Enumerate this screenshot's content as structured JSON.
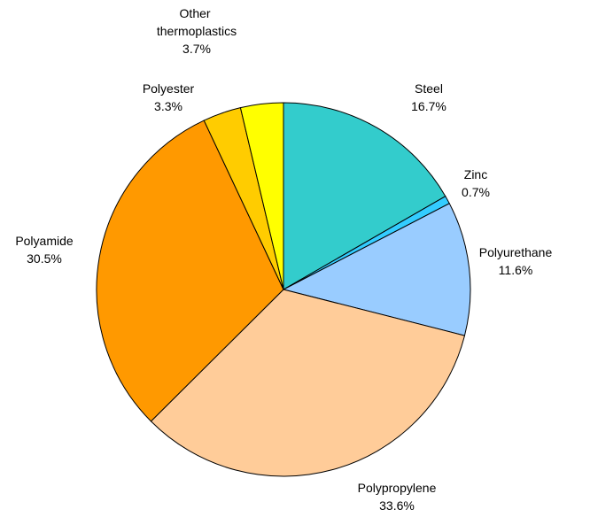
{
  "chart_data": {
    "type": "pie",
    "categories": [
      "Steel",
      "Zinc",
      "Polyurethane",
      "Polypropylene",
      "Polyamide",
      "Polyester",
      "Other thermoplastics"
    ],
    "values": [
      16.7,
      0.7,
      11.6,
      33.6,
      30.5,
      3.3,
      3.7
    ],
    "value_labels": [
      "16.7%",
      "0.7%",
      "11.6%",
      "33.6%",
      "30.5%",
      "3.3%",
      "3.7%"
    ],
    "colors": [
      "#33cccc",
      "#33ccff",
      "#99ccff",
      "#ffcc99",
      "#ff9900",
      "#ffcc00",
      "#ffff00"
    ]
  }
}
